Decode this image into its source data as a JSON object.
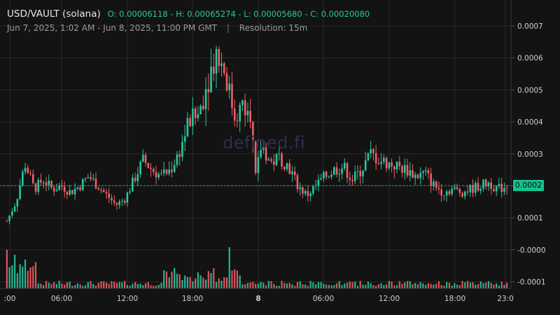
{
  "header": {
    "symbol": "USD/VAULT (solana)",
    "ohlc": "O: 0.00006118 - H: 0.00065274 - L: 0.00005680 - C: 0.00020080",
    "date_range": "Jun 7, 2025, 1:02 AM - Jun 8, 2025, 11:00 PM GMT",
    "separator": "|",
    "resolution": "Resolution: 15m"
  },
  "watermark": "defined.fi",
  "last_price_tag": "0.0002",
  "colors": {
    "background": "#131313",
    "up": "#26c9a0",
    "down": "#ef5f67",
    "grid": "#2a2a2a",
    "tag": "#14c38e"
  },
  "chart_data": {
    "type": "candlestick",
    "resolution": "15m",
    "price_axis": {
      "ticks": [
        "0.0007",
        "0.0006",
        "0.0005",
        "0.0004",
        "0.0003",
        "0.0002",
        "0.0001",
        "-0.0000",
        "-0.0001"
      ],
      "ylim": [
        -0.00012,
        0.00075
      ]
    },
    "time_axis": {
      "ticks": [
        ":00",
        "06:00",
        "12:00",
        "18:00",
        "8",
        "06:00",
        "12:00",
        "18:00",
        "23:0"
      ]
    },
    "last_price": 0.0002008,
    "anchors": [
      [
        0,
        9e-05
      ],
      [
        3,
        0.00015
      ],
      [
        6,
        0.00027
      ],
      [
        9,
        0.00019
      ],
      [
        12,
        0.00022
      ],
      [
        15,
        0.00019
      ],
      [
        18,
        0.0002
      ],
      [
        21,
        0.00018
      ],
      [
        24,
        0.0002
      ],
      [
        27,
        0.00023
      ],
      [
        30,
        0.0002
      ],
      [
        33,
        0.00017
      ],
      [
        36,
        0.00014
      ],
      [
        39,
        0.00016
      ],
      [
        42,
        0.00022
      ],
      [
        45,
        0.00028
      ],
      [
        48,
        0.00025
      ],
      [
        51,
        0.00023
      ],
      [
        54,
        0.00025
      ],
      [
        57,
        0.00031
      ],
      [
        60,
        0.0004
      ],
      [
        63,
        0.00042
      ],
      [
        66,
        0.00052
      ],
      [
        69,
        0.00062
      ],
      [
        72,
        0.00056
      ],
      [
        75,
        0.00042
      ],
      [
        78,
        0.00045
      ],
      [
        80,
        0.00048
      ],
      [
        82,
        0.00022
      ],
      [
        84,
        0.00033
      ],
      [
        87,
        0.00027
      ],
      [
        90,
        0.00029
      ],
      [
        93,
        0.00026
      ],
      [
        96,
        0.0002
      ],
      [
        99,
        0.00017
      ],
      [
        102,
        0.0002
      ],
      [
        105,
        0.00023
      ],
      [
        108,
        0.00025
      ],
      [
        111,
        0.00026
      ],
      [
        114,
        0.00022
      ],
      [
        117,
        0.00025
      ],
      [
        120,
        0.0003
      ],
      [
        123,
        0.00028
      ],
      [
        126,
        0.00027
      ],
      [
        129,
        0.00026
      ],
      [
        132,
        0.00025
      ],
      [
        135,
        0.00023
      ],
      [
        138,
        0.00024
      ],
      [
        141,
        0.0002
      ],
      [
        144,
        0.00018
      ],
      [
        147,
        0.00019
      ],
      [
        150,
        0.00018
      ],
      [
        153,
        0.00019
      ],
      [
        156,
        0.0002
      ],
      [
        159,
        0.00021
      ],
      [
        162,
        0.00019
      ],
      [
        165,
        0.0002
      ]
    ],
    "volume_ylim": [
      0,
      1
    ]
  }
}
